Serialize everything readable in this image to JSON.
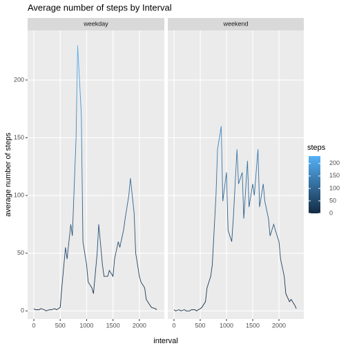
{
  "chart_data": {
    "type": "line",
    "title": "Average number of steps by Interval",
    "xlabel": "interval",
    "ylabel": "average number of steps",
    "x": [
      0,
      30,
      100,
      130,
      200,
      230,
      300,
      330,
      400,
      430,
      500,
      530,
      600,
      630,
      700,
      730,
      800,
      830,
      900,
      930,
      1000,
      1030,
      1100,
      1130,
      1200,
      1230,
      1300,
      1330,
      1400,
      1430,
      1500,
      1530,
      1600,
      1630,
      1700,
      1730,
      1800,
      1830,
      1900,
      1930,
      2000,
      2030,
      2100,
      2130,
      2200,
      2230,
      2300,
      2330
    ],
    "series": [
      {
        "name": "weekday",
        "values": [
          2,
          1,
          1,
          2,
          1,
          0,
          1,
          1,
          2,
          1,
          3,
          20,
          55,
          45,
          75,
          65,
          150,
          230,
          170,
          60,
          40,
          25,
          20,
          15,
          50,
          75,
          40,
          30,
          30,
          35,
          30,
          45,
          60,
          55,
          70,
          80,
          100,
          115,
          85,
          50,
          30,
          25,
          20,
          10,
          5,
          3,
          2,
          1
        ]
      },
      {
        "name": "weekend",
        "values": [
          1,
          0,
          1,
          0,
          1,
          0,
          0,
          1,
          1,
          0,
          2,
          3,
          8,
          20,
          30,
          40,
          100,
          140,
          160,
          95,
          120,
          70,
          60,
          80,
          140,
          110,
          120,
          80,
          130,
          90,
          110,
          100,
          140,
          90,
          110,
          95,
          80,
          65,
          75,
          70,
          60,
          45,
          30,
          15,
          8,
          10,
          5,
          2
        ]
      }
    ],
    "xlim": [
      -117.75,
      2472.75
    ],
    "xticks": [
      0,
      500,
      1000,
      1500,
      2000
    ],
    "ylim": [
      -7,
      243
    ],
    "yticks": [
      0,
      50,
      100,
      150,
      200
    ],
    "grid": true,
    "legend": {
      "title": "steps",
      "low": "#132B43",
      "high": "#56B1F7",
      "lim": [
        0,
        230
      ],
      "ticks": [
        0,
        50,
        100,
        150,
        200
      ]
    }
  }
}
